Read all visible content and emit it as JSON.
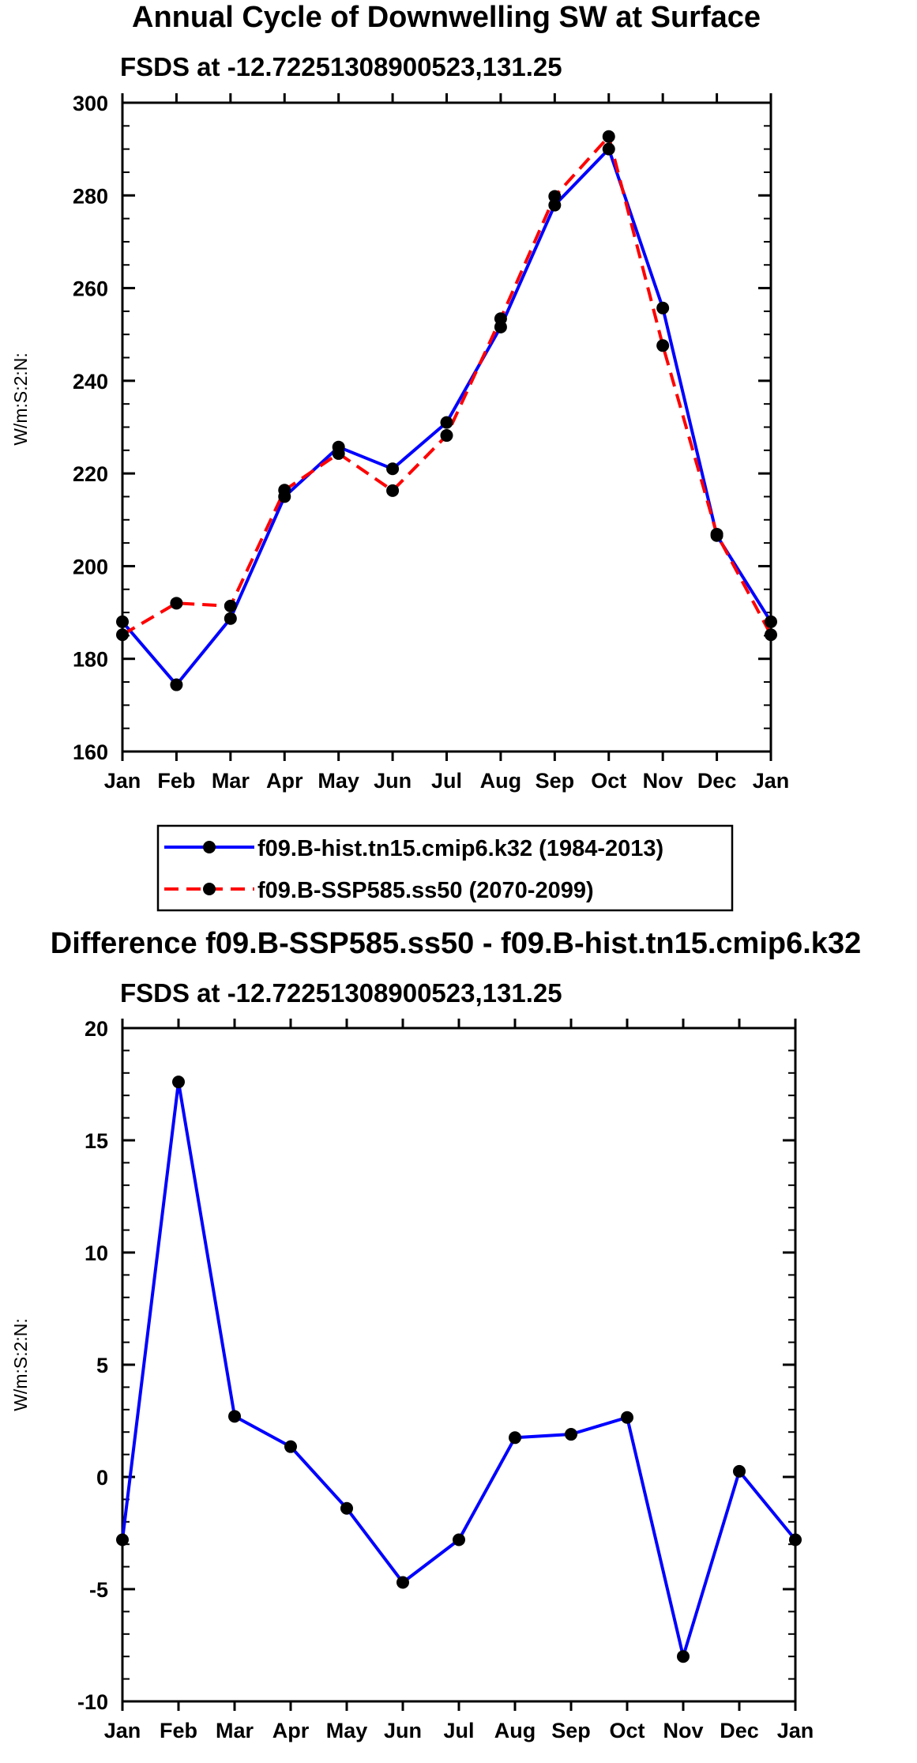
{
  "chart_data": [
    {
      "type": "line",
      "title": "Annual Cycle of Downwelling SW at Surface",
      "subtitle": "FSDS at -12.72251308900523,131.25",
      "xlabel": "",
      "ylabel": "W/m:S:2:N:",
      "categories": [
        "Jan",
        "Feb",
        "Mar",
        "Apr",
        "May",
        "Jun",
        "Jul",
        "Aug",
        "Sep",
        "Oct",
        "Nov",
        "Dec",
        "Jan"
      ],
      "ylim": [
        160,
        300
      ],
      "yticks": [
        160,
        180,
        200,
        220,
        240,
        260,
        280,
        300
      ],
      "ytick_labels": [
        "160",
        "180",
        "200",
        "220",
        "240",
        "260",
        "280",
        "300"
      ],
      "series": [
        {
          "name": "f09.B-hist.tn15.cmip6.k32 (1984-2013)",
          "color": "#0000ff",
          "dash": "solid",
          "marker": "filled-circle",
          "values": [
            188.0,
            174.4,
            188.7,
            215.0,
            225.7,
            221.0,
            231.0,
            251.6,
            277.9,
            290.0,
            255.7,
            206.6,
            188.0
          ]
        },
        {
          "name": "f09.B-SSP585.ss50 (2070-2099)",
          "color": "#ff0000",
          "dash": "dashed",
          "marker": "filled-circle",
          "values": [
            185.2,
            192.0,
            191.4,
            216.4,
            224.3,
            216.3,
            228.2,
            253.4,
            279.8,
            292.7,
            247.6,
            206.9,
            185.2
          ]
        }
      ],
      "legend": "below"
    },
    {
      "type": "line",
      "title": "Difference f09.B-SSP585.ss50 - f09.B-hist.tn15.cmip6.k32",
      "subtitle": "FSDS at -12.72251308900523,131.25",
      "xlabel": "",
      "ylabel": "W/m:S:2:N:",
      "categories": [
        "Jan",
        "Feb",
        "Mar",
        "Apr",
        "May",
        "Jun",
        "Jul",
        "Aug",
        "Sep",
        "Oct",
        "Nov",
        "Dec",
        "Jan"
      ],
      "ylim": [
        -10,
        20
      ],
      "yticks": [
        -10,
        -5,
        0,
        5,
        10,
        15,
        20
      ],
      "ytick_labels": [
        "-10",
        "-5",
        "0",
        "5",
        "10",
        "15",
        "20"
      ],
      "series": [
        {
          "color": "#0000ff",
          "dash": "solid",
          "marker": "filled-circle",
          "values": [
            -2.8,
            17.6,
            2.7,
            1.35,
            -1.4,
            -4.7,
            -2.8,
            1.75,
            1.9,
            2.65,
            -8.0,
            0.25,
            -2.8
          ]
        }
      ]
    }
  ]
}
